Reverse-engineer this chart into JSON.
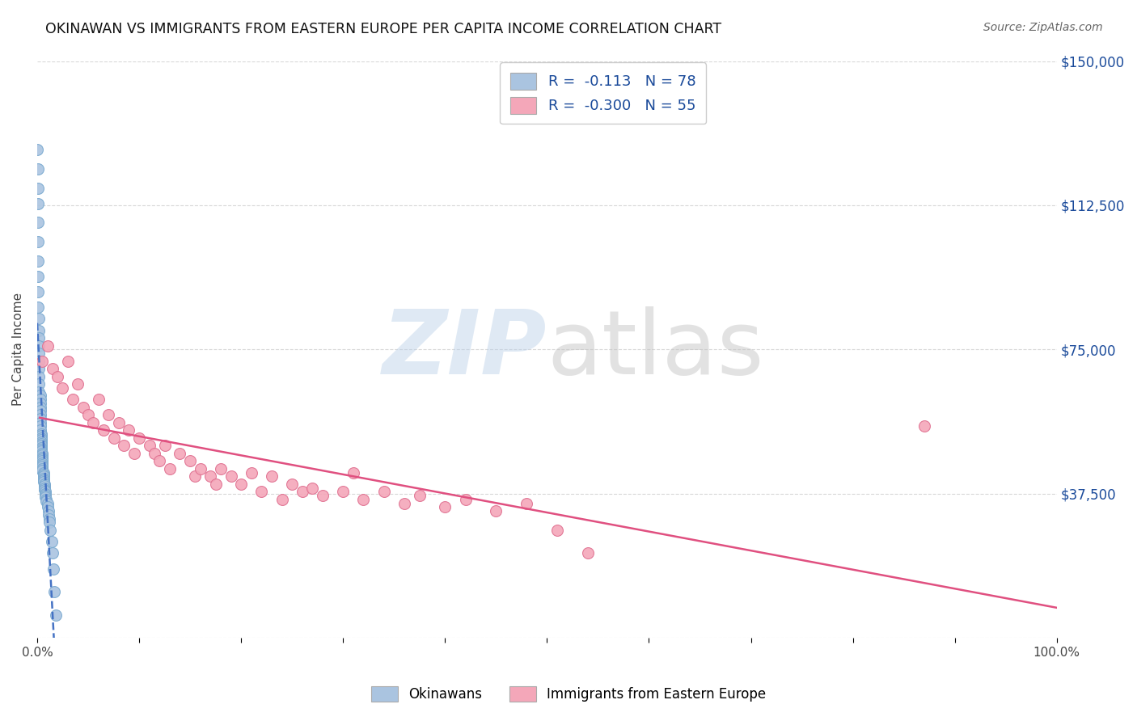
{
  "title": "OKINAWAN VS IMMIGRANTS FROM EASTERN EUROPE PER CAPITA INCOME CORRELATION CHART",
  "source": "Source: ZipAtlas.com",
  "ylabel": "Per Capita Income",
  "xlim": [
    0,
    1.0
  ],
  "ylim": [
    0,
    150000
  ],
  "yticks": [
    0,
    37500,
    75000,
    112500,
    150000
  ],
  "ytick_labels": [
    "",
    "$37,500",
    "$75,000",
    "$112,500",
    "$150,000"
  ],
  "background_color": "#ffffff",
  "grid_color": "#d8d8d8",
  "series": [
    {
      "name": "Okinawans",
      "R": -0.113,
      "N": 78,
      "color": "#aac4e0",
      "edge_color": "#7aaad0",
      "trend_color": "#4472c4",
      "trend_style": "--",
      "x": [
        0.0,
        0.001,
        0.001,
        0.001,
        0.001,
        0.001,
        0.001,
        0.001,
        0.001,
        0.001,
        0.002,
        0.002,
        0.002,
        0.002,
        0.002,
        0.002,
        0.002,
        0.002,
        0.002,
        0.002,
        0.003,
        0.003,
        0.003,
        0.003,
        0.003,
        0.003,
        0.003,
        0.003,
        0.003,
        0.003,
        0.004,
        0.004,
        0.004,
        0.004,
        0.004,
        0.004,
        0.004,
        0.004,
        0.004,
        0.004,
        0.005,
        0.005,
        0.005,
        0.005,
        0.005,
        0.005,
        0.005,
        0.005,
        0.005,
        0.005,
        0.006,
        0.006,
        0.006,
        0.006,
        0.006,
        0.006,
        0.007,
        0.007,
        0.007,
        0.007,
        0.008,
        0.008,
        0.008,
        0.008,
        0.009,
        0.009,
        0.01,
        0.01,
        0.011,
        0.011,
        0.012,
        0.012,
        0.013,
        0.014,
        0.015,
        0.016,
        0.017,
        0.018
      ],
      "y": [
        127000,
        122000,
        117000,
        113000,
        108000,
        103000,
        98000,
        94000,
        90000,
        86000,
        83000,
        80000,
        78000,
        76000,
        74000,
        72000,
        70000,
        68000,
        66000,
        64000,
        63000,
        62000,
        61000,
        60000,
        59000,
        58000,
        57000,
        56000,
        55000,
        54000,
        53000,
        52500,
        52000,
        51500,
        51000,
        50500,
        50000,
        49500,
        49000,
        48500,
        48000,
        47500,
        47000,
        46500,
        46000,
        45500,
        45000,
        44500,
        44000,
        43500,
        43000,
        42500,
        42000,
        41500,
        41000,
        40500,
        40000,
        39500,
        39000,
        38500,
        38000,
        37500,
        37000,
        36500,
        36000,
        35500,
        35000,
        34000,
        33000,
        32000,
        31000,
        30000,
        28000,
        25000,
        22000,
        18000,
        12000,
        6000
      ]
    },
    {
      "name": "Immigrants from Eastern Europe",
      "R": -0.3,
      "N": 55,
      "color": "#f4a7b9",
      "edge_color": "#e07090",
      "trend_color": "#e05080",
      "trend_style": "-",
      "x": [
        0.005,
        0.01,
        0.015,
        0.02,
        0.025,
        0.03,
        0.035,
        0.04,
        0.045,
        0.05,
        0.055,
        0.06,
        0.065,
        0.07,
        0.075,
        0.08,
        0.085,
        0.09,
        0.095,
        0.1,
        0.11,
        0.115,
        0.12,
        0.125,
        0.13,
        0.14,
        0.15,
        0.155,
        0.16,
        0.17,
        0.175,
        0.18,
        0.19,
        0.2,
        0.21,
        0.22,
        0.23,
        0.24,
        0.25,
        0.26,
        0.27,
        0.28,
        0.3,
        0.31,
        0.32,
        0.34,
        0.36,
        0.375,
        0.4,
        0.42,
        0.45,
        0.48,
        0.51,
        0.54,
        0.87
      ],
      "y": [
        72000,
        76000,
        70000,
        68000,
        65000,
        72000,
        62000,
        66000,
        60000,
        58000,
        56000,
        62000,
        54000,
        58000,
        52000,
        56000,
        50000,
        54000,
        48000,
        52000,
        50000,
        48000,
        46000,
        50000,
        44000,
        48000,
        46000,
        42000,
        44000,
        42000,
        40000,
        44000,
        42000,
        40000,
        43000,
        38000,
        42000,
        36000,
        40000,
        38000,
        39000,
        37000,
        38000,
        43000,
        36000,
        38000,
        35000,
        37000,
        34000,
        36000,
        33000,
        35000,
        28000,
        22000,
        55000
      ]
    }
  ],
  "legend_R_color": "#1a4a9a",
  "legend_labels": [
    "Okinawans",
    "Immigrants from Eastern Europe"
  ]
}
